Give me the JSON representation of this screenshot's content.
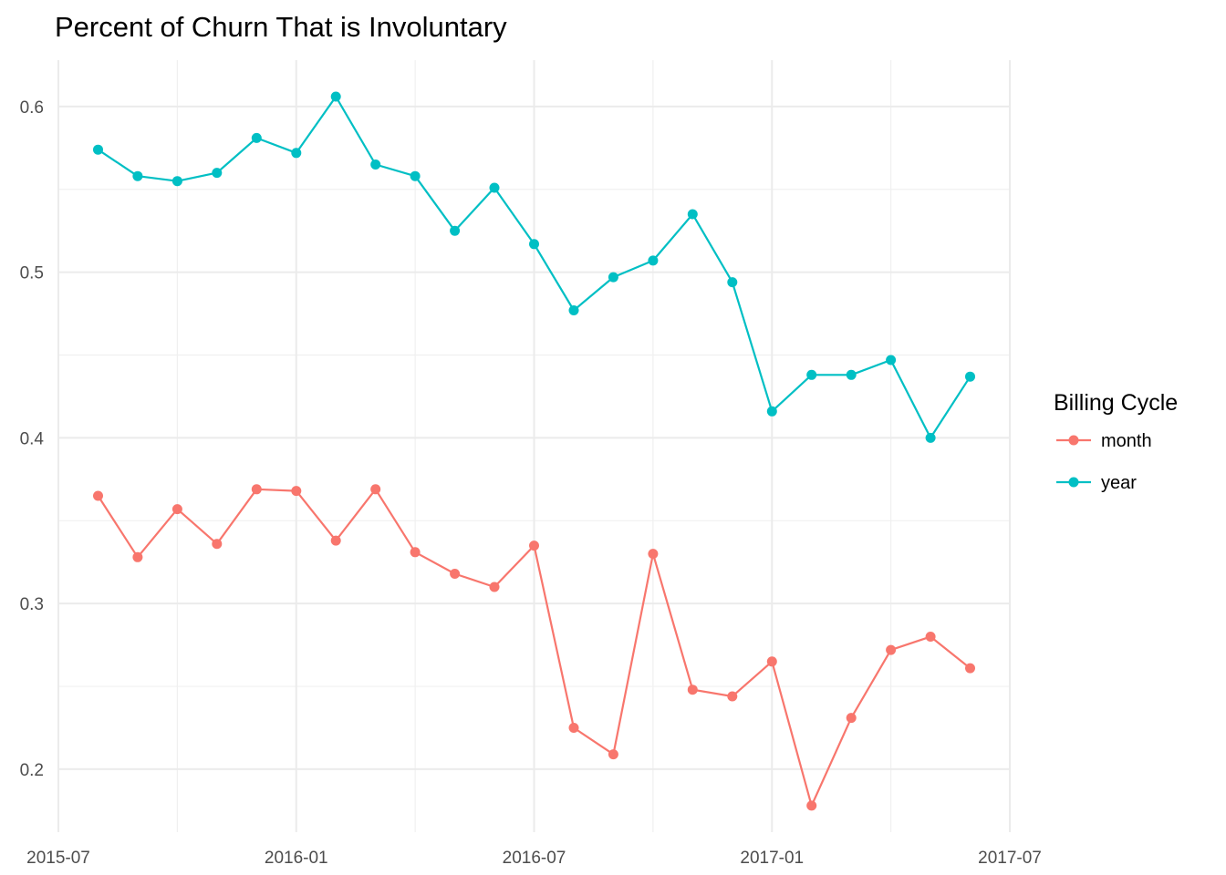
{
  "chart_data": {
    "type": "line",
    "title": "Percent of Churn That is Involuntary",
    "xlabel": "",
    "ylabel": "",
    "x": [
      "2015-08",
      "2015-09",
      "2015-10",
      "2015-11",
      "2015-12",
      "2016-01",
      "2016-02",
      "2016-03",
      "2016-04",
      "2016-05",
      "2016-06",
      "2016-07",
      "2016-08",
      "2016-09",
      "2016-10",
      "2016-11",
      "2016-12",
      "2017-01",
      "2017-02",
      "2017-03",
      "2017-04",
      "2017-05",
      "2017-06"
    ],
    "x_ticks": [
      "2015-07",
      "2016-01",
      "2016-07",
      "2017-01",
      "2017-07"
    ],
    "y_ticks": [
      "0.2",
      "0.3",
      "0.4",
      "0.5",
      "0.6"
    ],
    "xlim": [
      "2015-07",
      "2017-07"
    ],
    "ylim": [
      0.162,
      0.628
    ],
    "grid": true,
    "legend": {
      "title": "Billing Cycle",
      "position": "right"
    },
    "series": [
      {
        "name": "month",
        "color": "#F8766D",
        "values": [
          0.365,
          0.328,
          0.357,
          0.336,
          0.369,
          0.368,
          0.338,
          0.369,
          0.331,
          0.318,
          0.31,
          0.335,
          0.225,
          0.209,
          0.33,
          0.248,
          0.244,
          0.265,
          0.178,
          0.231,
          0.272,
          0.28,
          0.261
        ]
      },
      {
        "name": "year",
        "color": "#00BFC4",
        "values": [
          0.574,
          0.558,
          0.555,
          0.56,
          0.581,
          0.572,
          0.606,
          0.565,
          0.558,
          0.525,
          0.551,
          0.517,
          0.477,
          0.497,
          0.507,
          0.535,
          0.494,
          0.416,
          0.438,
          0.438,
          0.447,
          0.4,
          0.437
        ]
      }
    ]
  }
}
